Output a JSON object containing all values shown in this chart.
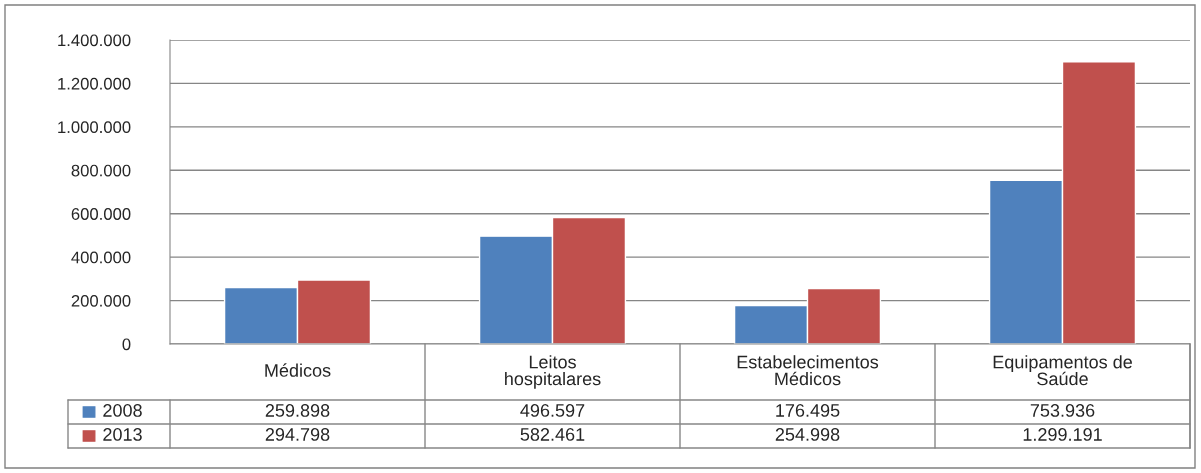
{
  "chart_data": {
    "type": "bar",
    "categories": [
      "Médicos",
      "Leitos\nhospitalares",
      "Estabelecimentos\nMédicos",
      "Equipamentos de\nSaúde"
    ],
    "series": [
      {
        "name": "2008",
        "color": "#4f81bd",
        "values": [
          259898,
          496597,
          176495,
          753936
        ],
        "value_labels": [
          "259.898",
          "496.597",
          "176.495",
          "753.936"
        ]
      },
      {
        "name": "2013",
        "color": "#c0504d",
        "values": [
          294798,
          582461,
          254998,
          1299191
        ],
        "value_labels": [
          "294.798",
          "582.461",
          "254.998",
          "1.299.191"
        ]
      }
    ],
    "ylim": [
      0,
      1400000
    ],
    "yticks": [
      0,
      {
        "value": 200000,
        "label": "200.000"
      },
      {
        "value": 400000,
        "label": "400.000"
      },
      {
        "value": 600000,
        "label": "600.000"
      },
      {
        "value": 800000,
        "label": "800.000"
      },
      {
        "value": 1000000,
        "label": "1.000.000"
      },
      {
        "value": 1200000,
        "label": "1.200.000"
      },
      {
        "value": 1400000,
        "label": "1.400.000"
      }
    ],
    "grid": "y",
    "legend": "bottom"
  }
}
